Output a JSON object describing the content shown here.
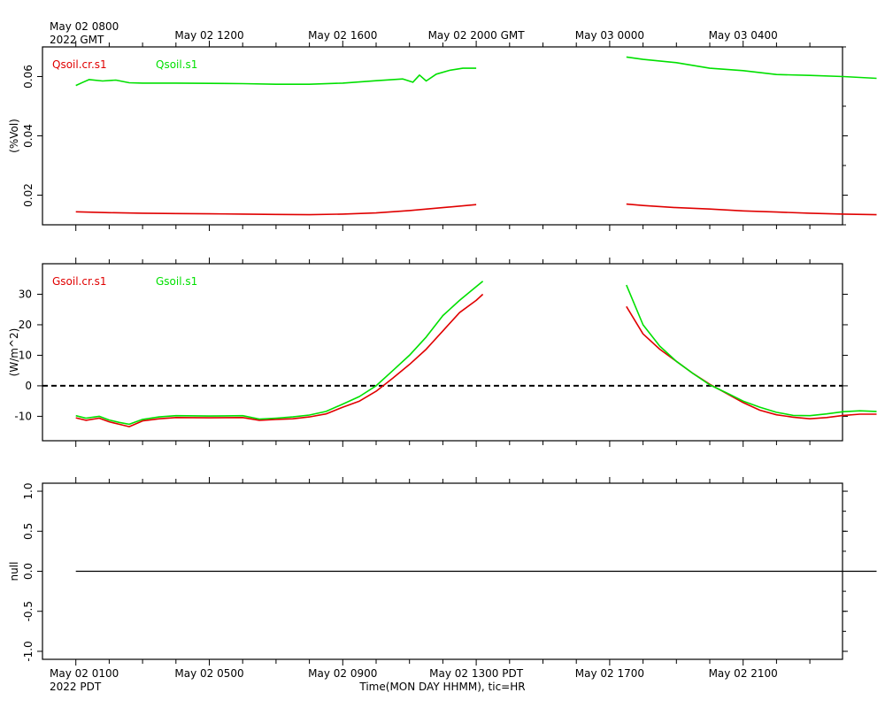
{
  "top_time_labels": {
    "first_line1": "May 02 0800",
    "first_line2": "2022 GMT",
    "others": [
      "May 02 1200",
      "May 02 1600",
      "May 02 2000 GMT",
      "May 03 0000",
      "May 03 0400"
    ]
  },
  "bottom_time_labels": {
    "first_line1": "May 02 0100",
    "first_line2": "2022 PDT",
    "others": [
      "May 02 0500",
      "May 02 0900",
      "May 02 1300 PDT",
      "May 02 1700",
      "May 02 2100"
    ]
  },
  "xaxis_title": "Time(MON DAY HHMM), tic=HR",
  "colors": {
    "red": "#e00000",
    "green": "#00e000",
    "frame": "#000000"
  },
  "chart_data": [
    {
      "type": "line",
      "ylabel": "(%Vol)",
      "ylim": [
        0.01,
        0.07
      ],
      "yticks": [
        0.02,
        0.04,
        0.06
      ],
      "ytick_labels": [
        "0.02",
        "0.04",
        "0.06"
      ],
      "xlim_hours_pdt": [
        0.0,
        24.0
      ],
      "series": [
        {
          "name": "Qsoil.cr.s1",
          "color": "#e00000",
          "segments": [
            [
              [
                0.0,
                0.0144
              ],
              [
                1.0,
                0.0141
              ],
              [
                2.0,
                0.0139
              ],
              [
                3.0,
                0.0138
              ],
              [
                4.0,
                0.0137
              ],
              [
                5.0,
                0.0136
              ],
              [
                6.0,
                0.0135
              ],
              [
                7.0,
                0.0134
              ],
              [
                8.0,
                0.0136
              ],
              [
                9.0,
                0.014
              ],
              [
                10.0,
                0.0148
              ],
              [
                11.0,
                0.0158
              ],
              [
                12.0,
                0.0168
              ]
            ],
            [
              [
                16.5,
                0.017
              ],
              [
                17.0,
                0.0165
              ],
              [
                18.0,
                0.0158
              ],
              [
                19.0,
                0.0153
              ],
              [
                20.0,
                0.0147
              ],
              [
                21.0,
                0.0143
              ],
              [
                22.0,
                0.0139
              ],
              [
                23.0,
                0.0136
              ],
              [
                24.0,
                0.0134
              ]
            ]
          ]
        },
        {
          "name": "Qsoil.s1",
          "color": "#00e000",
          "segments": [
            [
              [
                0.0,
                0.057
              ],
              [
                0.2,
                0.058
              ],
              [
                0.4,
                0.059
              ],
              [
                0.8,
                0.0585
              ],
              [
                1.2,
                0.0588
              ],
              [
                1.6,
                0.0579
              ],
              [
                2.0,
                0.0578
              ],
              [
                3.0,
                0.0578
              ],
              [
                4.0,
                0.0577
              ],
              [
                5.0,
                0.0576
              ],
              [
                6.0,
                0.0574
              ],
              [
                7.0,
                0.0574
              ],
              [
                8.0,
                0.0578
              ],
              [
                9.0,
                0.0586
              ],
              [
                9.8,
                0.0592
              ],
              [
                10.1,
                0.0581
              ],
              [
                10.3,
                0.0605
              ],
              [
                10.5,
                0.0585
              ],
              [
                10.8,
                0.0608
              ],
              [
                11.2,
                0.0621
              ],
              [
                11.6,
                0.0628
              ],
              [
                12.0,
                0.0628
              ]
            ],
            [
              [
                16.5,
                0.0666
              ],
              [
                17.0,
                0.0658
              ],
              [
                18.0,
                0.0647
              ],
              [
                19.0,
                0.0628
              ],
              [
                20.0,
                0.062
              ],
              [
                21.0,
                0.0607
              ],
              [
                22.0,
                0.0604
              ],
              [
                23.0,
                0.06
              ],
              [
                24.0,
                0.0594
              ]
            ]
          ]
        }
      ]
    },
    {
      "type": "line",
      "ylabel": "(W/m^2)",
      "ylim": [
        -18,
        40
      ],
      "yticks": [
        -10,
        0,
        10,
        20,
        30
      ],
      "ytick_labels": [
        "-10",
        "0",
        "10",
        "20",
        "30"
      ],
      "xlim_hours_pdt": [
        0.0,
        24.0
      ],
      "zero_line": {
        "y": 0,
        "style": "dashed"
      },
      "series": [
        {
          "name": "Gsoil.cr.s1",
          "color": "#e00000",
          "segments": [
            [
              [
                0.0,
                -10.5
              ],
              [
                0.3,
                -11.3
              ],
              [
                0.7,
                -10.6
              ],
              [
                1.0,
                -11.8
              ],
              [
                1.3,
                -12.6
              ],
              [
                1.6,
                -13.4
              ],
              [
                2.0,
                -11.5
              ],
              [
                2.5,
                -10.8
              ],
              [
                3.0,
                -10.4
              ],
              [
                4.0,
                -10.5
              ],
              [
                5.0,
                -10.4
              ],
              [
                5.5,
                -11.3
              ],
              [
                6.0,
                -11.0
              ],
              [
                6.5,
                -10.8
              ],
              [
                7.0,
                -10.2
              ],
              [
                7.5,
                -9.2
              ],
              [
                8.0,
                -7.0
              ],
              [
                8.5,
                -5.0
              ],
              [
                9.0,
                -1.8
              ],
              [
                9.5,
                2.5
              ],
              [
                10.0,
                7.0
              ],
              [
                10.5,
                12.0
              ],
              [
                11.0,
                18.0
              ],
              [
                11.5,
                24.0
              ],
              [
                12.0,
                28.0
              ],
              [
                12.2,
                30.0
              ]
            ],
            [
              [
                16.5,
                26.0
              ],
              [
                17.0,
                17.0
              ],
              [
                17.5,
                12.0
              ],
              [
                18.0,
                8.0
              ],
              [
                18.5,
                4.0
              ],
              [
                19.0,
                0.5
              ],
              [
                19.5,
                -2.5
              ],
              [
                20.0,
                -5.5
              ],
              [
                20.5,
                -8.0
              ],
              [
                21.0,
                -9.5
              ],
              [
                21.5,
                -10.3
              ],
              [
                22.0,
                -10.8
              ],
              [
                22.5,
                -10.4
              ],
              [
                23.0,
                -9.7
              ],
              [
                23.5,
                -9.3
              ],
              [
                24.0,
                -9.3
              ]
            ]
          ]
        },
        {
          "name": "Gsoil.s1",
          "color": "#00e000",
          "segments": [
            [
              [
                0.0,
                -9.8
              ],
              [
                0.3,
                -10.6
              ],
              [
                0.7,
                -10.0
              ],
              [
                1.0,
                -11.2
              ],
              [
                1.3,
                -12.0
              ],
              [
                1.6,
                -12.6
              ],
              [
                2.0,
                -11.0
              ],
              [
                2.5,
                -10.2
              ],
              [
                3.0,
                -9.8
              ],
              [
                4.0,
                -9.9
              ],
              [
                5.0,
                -9.8
              ],
              [
                5.5,
                -10.9
              ],
              [
                6.0,
                -10.6
              ],
              [
                6.5,
                -10.2
              ],
              [
                7.0,
                -9.6
              ],
              [
                7.5,
                -8.4
              ],
              [
                8.0,
                -6.0
              ],
              [
                8.5,
                -3.5
              ],
              [
                9.0,
                0.0
              ],
              [
                9.5,
                5.0
              ],
              [
                10.0,
                10.0
              ],
              [
                10.5,
                16.0
              ],
              [
                11.0,
                23.0
              ],
              [
                11.5,
                28.0
              ],
              [
                12.0,
                32.5
              ],
              [
                12.2,
                34.3
              ]
            ],
            [
              [
                16.5,
                33.0
              ],
              [
                17.0,
                20.0
              ],
              [
                17.5,
                13.0
              ],
              [
                18.0,
                8.0
              ],
              [
                18.5,
                4.0
              ],
              [
                19.0,
                0.3
              ],
              [
                19.5,
                -2.3
              ],
              [
                20.0,
                -5.0
              ],
              [
                20.5,
                -7.0
              ],
              [
                21.0,
                -8.7
              ],
              [
                21.5,
                -9.7
              ],
              [
                22.0,
                -9.8
              ],
              [
                22.5,
                -9.2
              ],
              [
                23.0,
                -8.5
              ],
              [
                23.5,
                -8.2
              ],
              [
                24.0,
                -8.4
              ]
            ]
          ]
        }
      ]
    },
    {
      "type": "line",
      "ylabel": "null",
      "ylim": [
        -1.1,
        1.1
      ],
      "yticks": [
        -1.0,
        -0.5,
        0.0,
        0.5,
        1.0
      ],
      "ytick_labels": [
        "-1.0",
        "-0.5",
        "0.0",
        "0.5",
        "1.0"
      ],
      "xlim_hours_pdt": [
        0.0,
        24.0
      ],
      "series": [
        {
          "name": "",
          "color": "#000000",
          "segments": [
            [
              [
                0.0,
                0.0
              ],
              [
                24.0,
                0.0
              ]
            ]
          ]
        }
      ]
    }
  ]
}
